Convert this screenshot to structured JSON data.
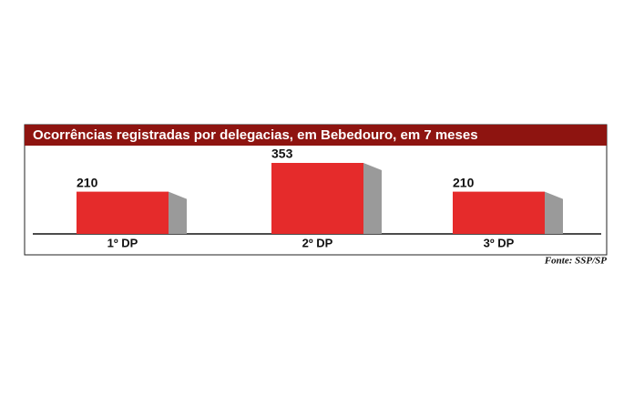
{
  "chart_data": {
    "type": "bar",
    "title": "Ocorrências registradas por delegacias, em Bebedouro, em 7 meses",
    "categories": [
      "1º DP",
      "2º DP",
      "3º DP"
    ],
    "values": [
      210,
      353,
      210
    ],
    "color": "#e52b2b",
    "source": "Fonte: SSP/SP"
  }
}
